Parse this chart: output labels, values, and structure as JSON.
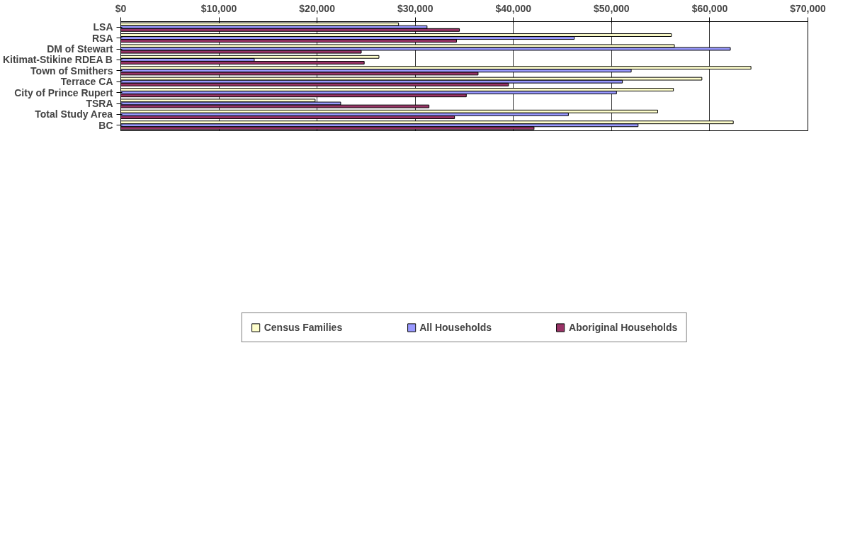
{
  "chart_data": {
    "type": "bar",
    "orientation": "horizontal",
    "categories": [
      "LSA",
      "RSA",
      "DM of Stewart",
      "Kitimat-Stikine RDEA B",
      "Town of Smithers",
      "Terrace CA",
      "City of Prince Rupert",
      "TSRA",
      "Total Study Area",
      "BC"
    ],
    "series": [
      {
        "name": "Census Families",
        "color": "#ffffcc",
        "values": [
          28300,
          56100,
          56400,
          26300,
          64200,
          59200,
          56300,
          19800,
          54700,
          62400
        ]
      },
      {
        "name": "All Households",
        "color": "#9999ff",
        "values": [
          31200,
          46200,
          62100,
          13600,
          52000,
          51100,
          50500,
          22400,
          45600,
          52700
        ]
      },
      {
        "name": "Aboriginal Households",
        "color": "#993366",
        "values": [
          34500,
          34200,
          24500,
          24800,
          36400,
          39500,
          35200,
          31400,
          34000,
          42100
        ]
      }
    ],
    "xlim": [
      0,
      70000
    ],
    "xticks": [
      {
        "value": 0,
        "label": "$0"
      },
      {
        "value": 10000,
        "label": "$10,000"
      },
      {
        "value": 20000,
        "label": "$20,000"
      },
      {
        "value": 30000,
        "label": "$30,000"
      },
      {
        "value": 40000,
        "label": "$40,000"
      },
      {
        "value": 50000,
        "label": "$50,000"
      },
      {
        "value": 60000,
        "label": "$60,000"
      },
      {
        "value": 70000,
        "label": "$70,000"
      }
    ],
    "grid": "x",
    "legend": "bottom"
  }
}
